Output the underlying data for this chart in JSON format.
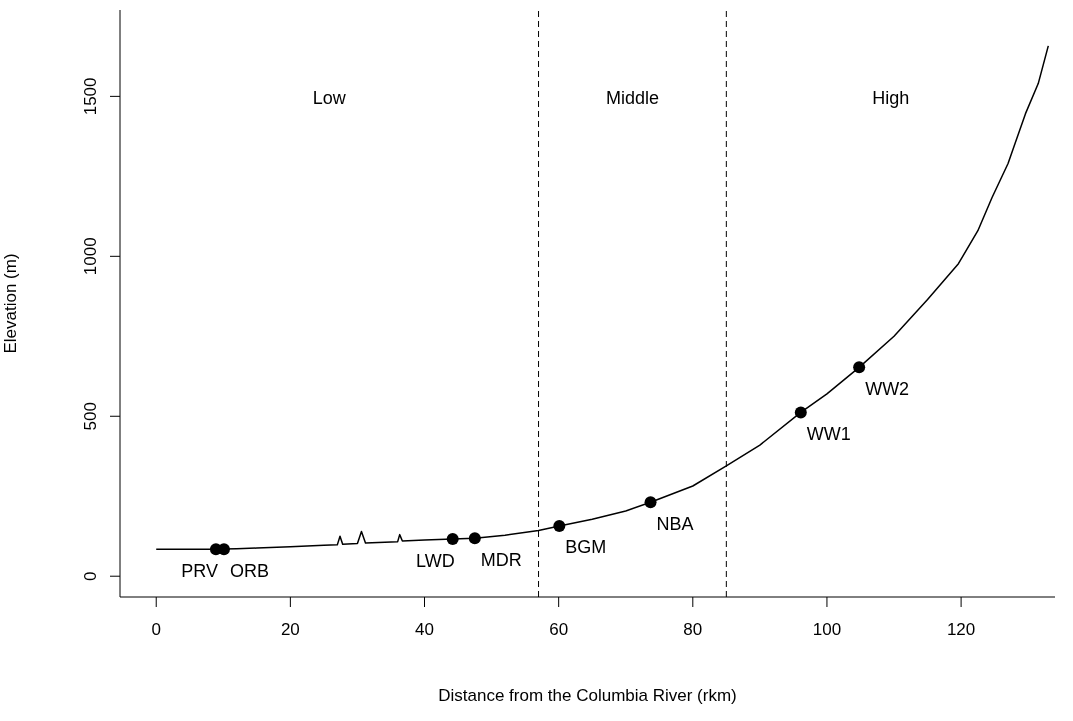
{
  "chart_data": {
    "type": "line",
    "xlabel": "Distance from the Columbia River (rkm)",
    "ylabel": "Elevation (m)",
    "xlim": [
      -5.4,
      134
    ],
    "xticks": [
      0,
      20,
      40,
      60,
      80,
      100,
      120
    ],
    "ylim": [
      -65,
      1770
    ],
    "yticks": [
      0,
      500,
      1000,
      1500
    ],
    "series": [
      {
        "color": "#000000",
        "marker": "none",
        "x": [
          0,
          8,
          12,
          15,
          20,
          25,
          27,
          27.4,
          27.8,
          30,
          30.6,
          31.2,
          36,
          36.3,
          36.7,
          40,
          44.2,
          47.5,
          52,
          57,
          60.1,
          65,
          70,
          73.7,
          80,
          85,
          90,
          96.1,
          100,
          104.8,
          110,
          115,
          119.6,
          122.5,
          124.6,
          127,
          129.6,
          131.5,
          133
        ],
        "values": [
          84,
          84,
          86,
          88,
          92,
          97,
          98,
          125,
          100,
          102,
          140,
          104,
          108,
          130,
          110,
          113,
          116,
          119,
          128,
          143,
          157,
          178,
          204,
          231,
          282,
          345,
          410,
          512,
          570,
          653,
          750,
          865,
          977,
          1080,
          1183,
          1290,
          1446,
          1540,
          1658
        ]
      },
      {
        "type": "scatter",
        "color": "#000000",
        "marker": "circle",
        "x": [
          8.9,
          10.1,
          44.2,
          47.5,
          60.1,
          73.7,
          96.1,
          104.8
        ],
        "values": [
          84,
          84,
          116,
          119,
          157,
          231,
          512,
          653
        ],
        "value_labels": [
          "PRV",
          "ORB",
          "LWD",
          "MDR",
          "BGM",
          "NBA",
          "WW1",
          "WW2"
        ]
      }
    ],
    "ref_lines": [
      {
        "axis": "x",
        "value": 57,
        "color": "#000000",
        "line_style": "dashed"
      },
      {
        "axis": "x",
        "value": 85,
        "color": "#000000",
        "line_style": "dashed"
      }
    ],
    "annotations": [
      "Low",
      "Middle",
      "High"
    ]
  }
}
